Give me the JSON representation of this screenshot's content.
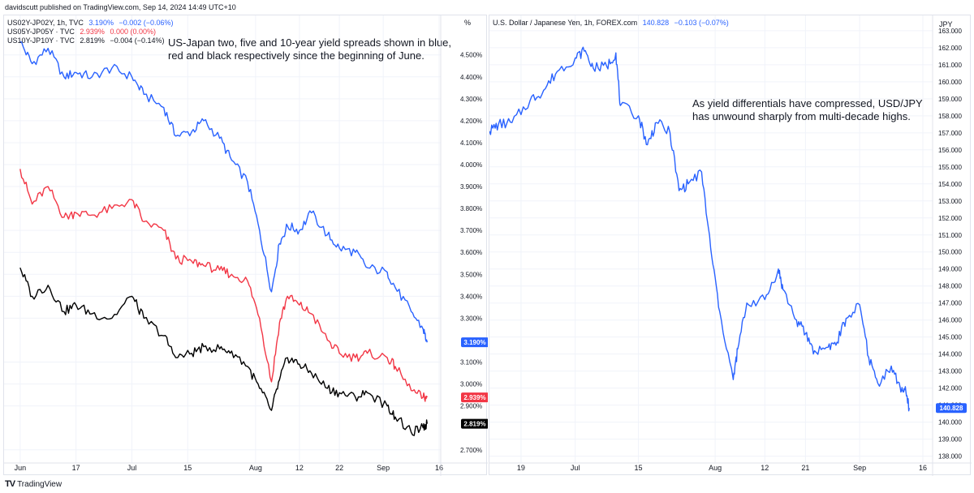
{
  "header": {
    "text": "davidscutt published on TradingView.com, Sep 14, 2024 14:49 UTC+10"
  },
  "footer": {
    "logo": "TV",
    "brand": "TradingView"
  },
  "left": {
    "unit_label": "%",
    "annotation": [
      "US-Japan two, five and 10-year yield spreads shown in blue,",
      "red and black respectively since the beginning of June."
    ],
    "legend": [
      {
        "symbol": "US02Y-JP02Y, 1h, TVC",
        "value": "3.190%",
        "change": "−0.002 (−0.06%)",
        "color": "#2962ff"
      },
      {
        "symbol": "US05Y-JP05Y · TVC",
        "value": "2.939%",
        "change": "0.000 (0.00%)",
        "color": "#f23645"
      },
      {
        "symbol": "US10Y-JP10Y · TVC",
        "value": "2.819%",
        "change": "−0.004 (−0.14%)",
        "color": "#000000"
      }
    ],
    "price_tags": [
      {
        "text": "3.190%",
        "value": 3.19,
        "bg": "#2962ff"
      },
      {
        "text": "2.939%",
        "value": 2.939,
        "bg": "#f23645"
      },
      {
        "text": "2.819%",
        "value": 2.819,
        "bg": "#000000"
      }
    ]
  },
  "right": {
    "unit_label": "JPY",
    "annotation": [
      "As yield differentials have compressed, USD/JPY",
      "has unwound sharply from multi-decade highs."
    ],
    "legend": {
      "symbol": "U.S. Dollar / Japanese Yen, 1h, FOREX.com",
      "value": "140.828",
      "change": "−0.103 (−0.07%)",
      "color": "#2962ff"
    },
    "price_tag": {
      "text": "140.828",
      "value": 140.828,
      "bg": "#2962ff"
    }
  },
  "chart_data": [
    {
      "type": "line",
      "title": "",
      "x_ticks": [
        "Jun",
        "17",
        "Jul",
        "15",
        "Aug",
        "12",
        "22",
        "Sep",
        "16"
      ],
      "y_ticks": [
        "4.500%",
        "4.400%",
        "4.300%",
        "4.200%",
        "4.100%",
        "4.000%",
        "3.900%",
        "3.800%",
        "3.700%",
        "3.600%",
        "3.500%",
        "3.400%",
        "3.300%",
        "3.100%",
        "3.000%",
        "2.900%",
        "2.700%"
      ],
      "ylim": [
        2.64,
        4.68
      ],
      "series": [
        {
          "name": "US02Y-JP02Y",
          "color": "#2962ff",
          "points": [
            [
              "Jun 3",
              4.56
            ],
            [
              "Jun 6",
              4.46
            ],
            [
              "Jun 10",
              4.53
            ],
            [
              "Jun 14",
              4.4
            ],
            [
              "Jun 17",
              4.42
            ],
            [
              "Jun 21",
              4.4
            ],
            [
              "Jun 26",
              4.44
            ],
            [
              "Jul 1",
              4.4
            ],
            [
              "Jul 4",
              4.32
            ],
            [
              "Jul 9",
              4.26
            ],
            [
              "Jul 12",
              4.13
            ],
            [
              "Jul 16",
              4.15
            ],
            [
              "Jul 19",
              4.2
            ],
            [
              "Jul 23",
              4.12
            ],
            [
              "Jul 26",
              4.02
            ],
            [
              "Jul 30",
              3.92
            ],
            [
              "Aug 2",
              3.7
            ],
            [
              "Aug 5",
              3.42
            ],
            [
              "Aug 7",
              3.64
            ],
            [
              "Aug 9",
              3.72
            ],
            [
              "Aug 12",
              3.7
            ],
            [
              "Aug 15",
              3.78
            ],
            [
              "Aug 19",
              3.68
            ],
            [
              "Aug 22",
              3.62
            ],
            [
              "Aug 26",
              3.6
            ],
            [
              "Aug 29",
              3.53
            ],
            [
              "Sep 3",
              3.51
            ],
            [
              "Sep 5",
              3.44
            ],
            [
              "Sep 9",
              3.33
            ],
            [
              "Sep 12",
              3.25
            ],
            [
              "Sep 13",
              3.19
            ]
          ]
        },
        {
          "name": "US05Y-JP05Y",
          "color": "#f23645",
          "points": [
            [
              "Jun 3",
              3.98
            ],
            [
              "Jun 6",
              3.82
            ],
            [
              "Jun 10",
              3.9
            ],
            [
              "Jun 14",
              3.76
            ],
            [
              "Jun 17",
              3.78
            ],
            [
              "Jun 21",
              3.77
            ],
            [
              "Jun 26",
              3.8
            ],
            [
              "Jul 1",
              3.84
            ],
            [
              "Jul 4",
              3.74
            ],
            [
              "Jul 9",
              3.7
            ],
            [
              "Jul 12",
              3.57
            ],
            [
              "Jul 16",
              3.56
            ],
            [
              "Jul 19",
              3.54
            ],
            [
              "Jul 23",
              3.52
            ],
            [
              "Jul 26",
              3.5
            ],
            [
              "Jul 30",
              3.47
            ],
            [
              "Aug 2",
              3.3
            ],
            [
              "Aug 5",
              3.01
            ],
            [
              "Aug 7",
              3.28
            ],
            [
              "Aug 9",
              3.4
            ],
            [
              "Aug 12",
              3.36
            ],
            [
              "Aug 15",
              3.32
            ],
            [
              "Aug 19",
              3.2
            ],
            [
              "Aug 22",
              3.14
            ],
            [
              "Aug 26",
              3.12
            ],
            [
              "Aug 29",
              3.14
            ],
            [
              "Sep 3",
              3.12
            ],
            [
              "Sep 5",
              3.08
            ],
            [
              "Sep 9",
              2.97
            ],
            [
              "Sep 12",
              2.94
            ],
            [
              "Sep 13",
              2.939
            ]
          ]
        },
        {
          "name": "US10Y-JP10Y",
          "color": "#000000",
          "points": [
            [
              "Jun 3",
              3.53
            ],
            [
              "Jun 6",
              3.4
            ],
            [
              "Jun 10",
              3.45
            ],
            [
              "Jun 14",
              3.33
            ],
            [
              "Jun 17",
              3.36
            ],
            [
              "Jun 21",
              3.32
            ],
            [
              "Jun 26",
              3.3
            ],
            [
              "Jul 1",
              3.4
            ],
            [
              "Jul 4",
              3.3
            ],
            [
              "Jul 9",
              3.22
            ],
            [
              "Jul 12",
              3.12
            ],
            [
              "Jul 16",
              3.14
            ],
            [
              "Jul 19",
              3.17
            ],
            [
              "Jul 23",
              3.16
            ],
            [
              "Jul 26",
              3.15
            ],
            [
              "Jul 30",
              3.08
            ],
            [
              "Aug 2",
              2.98
            ],
            [
              "Aug 5",
              2.88
            ],
            [
              "Aug 7",
              3.02
            ],
            [
              "Aug 9",
              3.12
            ],
            [
              "Aug 12",
              3.09
            ],
            [
              "Aug 15",
              3.05
            ],
            [
              "Aug 19",
              2.98
            ],
            [
              "Aug 22",
              2.96
            ],
            [
              "Aug 26",
              2.94
            ],
            [
              "Aug 29",
              2.96
            ],
            [
              "Sep 3",
              2.9
            ],
            [
              "Sep 5",
              2.85
            ],
            [
              "Sep 9",
              2.78
            ],
            [
              "Sep 12",
              2.8
            ],
            [
              "Sep 13",
              2.819
            ]
          ]
        }
      ]
    },
    {
      "type": "line",
      "title": "",
      "x_ticks": [
        "19",
        "Jul",
        "15",
        "Aug",
        "12",
        "21",
        "Sep",
        "16"
      ],
      "y_ticks": [
        "163.000",
        "162.000",
        "161.000",
        "160.000",
        "159.000",
        "158.000",
        "157.000",
        "156.000",
        "155.000",
        "154.000",
        "153.000",
        "152.000",
        "151.000",
        "150.000",
        "149.000",
        "148.000",
        "147.000",
        "146.000",
        "145.000",
        "144.000",
        "143.000",
        "142.000",
        "141.000",
        "140.000",
        "139.000",
        "138.000"
      ],
      "ylim": [
        137.6,
        163.9
      ],
      "series": [
        {
          "name": "U.S. Dollar / Japanese Yen",
          "color": "#2962ff",
          "points": [
            [
              "Jun 12",
              157.1
            ],
            [
              "Jun 14",
              157.5
            ],
            [
              "Jun 17",
              157.6
            ],
            [
              "Jun 21",
              158.9
            ],
            [
              "Jun 24",
              159.5
            ],
            [
              "Jun 27",
              160.6
            ],
            [
              "Jul 1",
              161.4
            ],
            [
              "Jul 3",
              161.8
            ],
            [
              "Jul 5",
              160.8
            ],
            [
              "Jul 8",
              160.9
            ],
            [
              "Jul 10",
              161.7
            ],
            [
              "Jul 11",
              158.6
            ],
            [
              "Jul 15",
              158.0
            ],
            [
              "Jul 17",
              156.3
            ],
            [
              "Jul 19",
              157.6
            ],
            [
              "Jul 22",
              157.0
            ],
            [
              "Jul 24",
              153.6
            ],
            [
              "Jul 26",
              154.0
            ],
            [
              "Jul 29",
              154.7
            ],
            [
              "Jul 31",
              150.2
            ],
            [
              "Aug 2",
              146.5
            ],
            [
              "Aug 5",
              142.5
            ],
            [
              "Aug 6",
              144.3
            ],
            [
              "Aug 8",
              147.0
            ],
            [
              "Aug 12",
              147.2
            ],
            [
              "Aug 15",
              149.0
            ],
            [
              "Aug 16",
              147.8
            ],
            [
              "Aug 19",
              146.0
            ],
            [
              "Aug 21",
              145.2
            ],
            [
              "Aug 23",
              144.2
            ],
            [
              "Aug 26",
              144.4
            ],
            [
              "Aug 28",
              144.7
            ],
            [
              "Aug 30",
              146.1
            ],
            [
              "Sep 2",
              146.9
            ],
            [
              "Sep 4",
              143.8
            ],
            [
              "Sep 6",
              142.3
            ],
            [
              "Sep 9",
              143.3
            ],
            [
              "Sep 11",
              142.0
            ],
            [
              "Sep 12",
              141.9
            ],
            [
              "Sep 13",
              140.828
            ]
          ]
        }
      ]
    }
  ]
}
